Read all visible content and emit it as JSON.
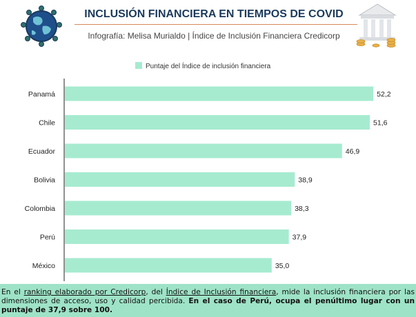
{
  "header": {
    "title": "INCLUSIÓN FINANCIERA EN TIEMPOS DE COVID",
    "subtitle": "Infografía: Melisa Murialdo | Índice de Inclusión Financiera Credicorp"
  },
  "colors": {
    "bar": "#a6ebd0",
    "title": "#1b3a5c",
    "footer_bg": "#9ee3c7"
  },
  "chart_data": {
    "type": "bar",
    "orientation": "horizontal",
    "categories": [
      "Panamá",
      "Chile",
      "Ecuador",
      "Bolivia",
      "Colombia",
      "Perú",
      "México"
    ],
    "series": [
      {
        "name": "Puntaje del Índice de inclusión financiera",
        "values": [
          52.2,
          51.6,
          46.9,
          38.9,
          38.3,
          37.9,
          35.0
        ]
      }
    ],
    "value_labels": [
      "52,2",
      "51,6",
      "46,9",
      "38,9",
      "38,3",
      "37,9",
      "35,0"
    ],
    "xlim": [
      0,
      60
    ],
    "legend_position": "top",
    "grid": false
  },
  "footer": {
    "p1": "En el ",
    "link1": "ranking elaborado por Credicorp",
    "p2": ", del ",
    "link2": "Índice de Inclusión financiera",
    "p3": ", mide la inclusión financiera por las dimensiones de acceso, uso y calidad percibida. ",
    "bold": "En el caso de Perú, ocupa el penúltimo lugar con un puntaje de 37,9 sobre 100."
  }
}
